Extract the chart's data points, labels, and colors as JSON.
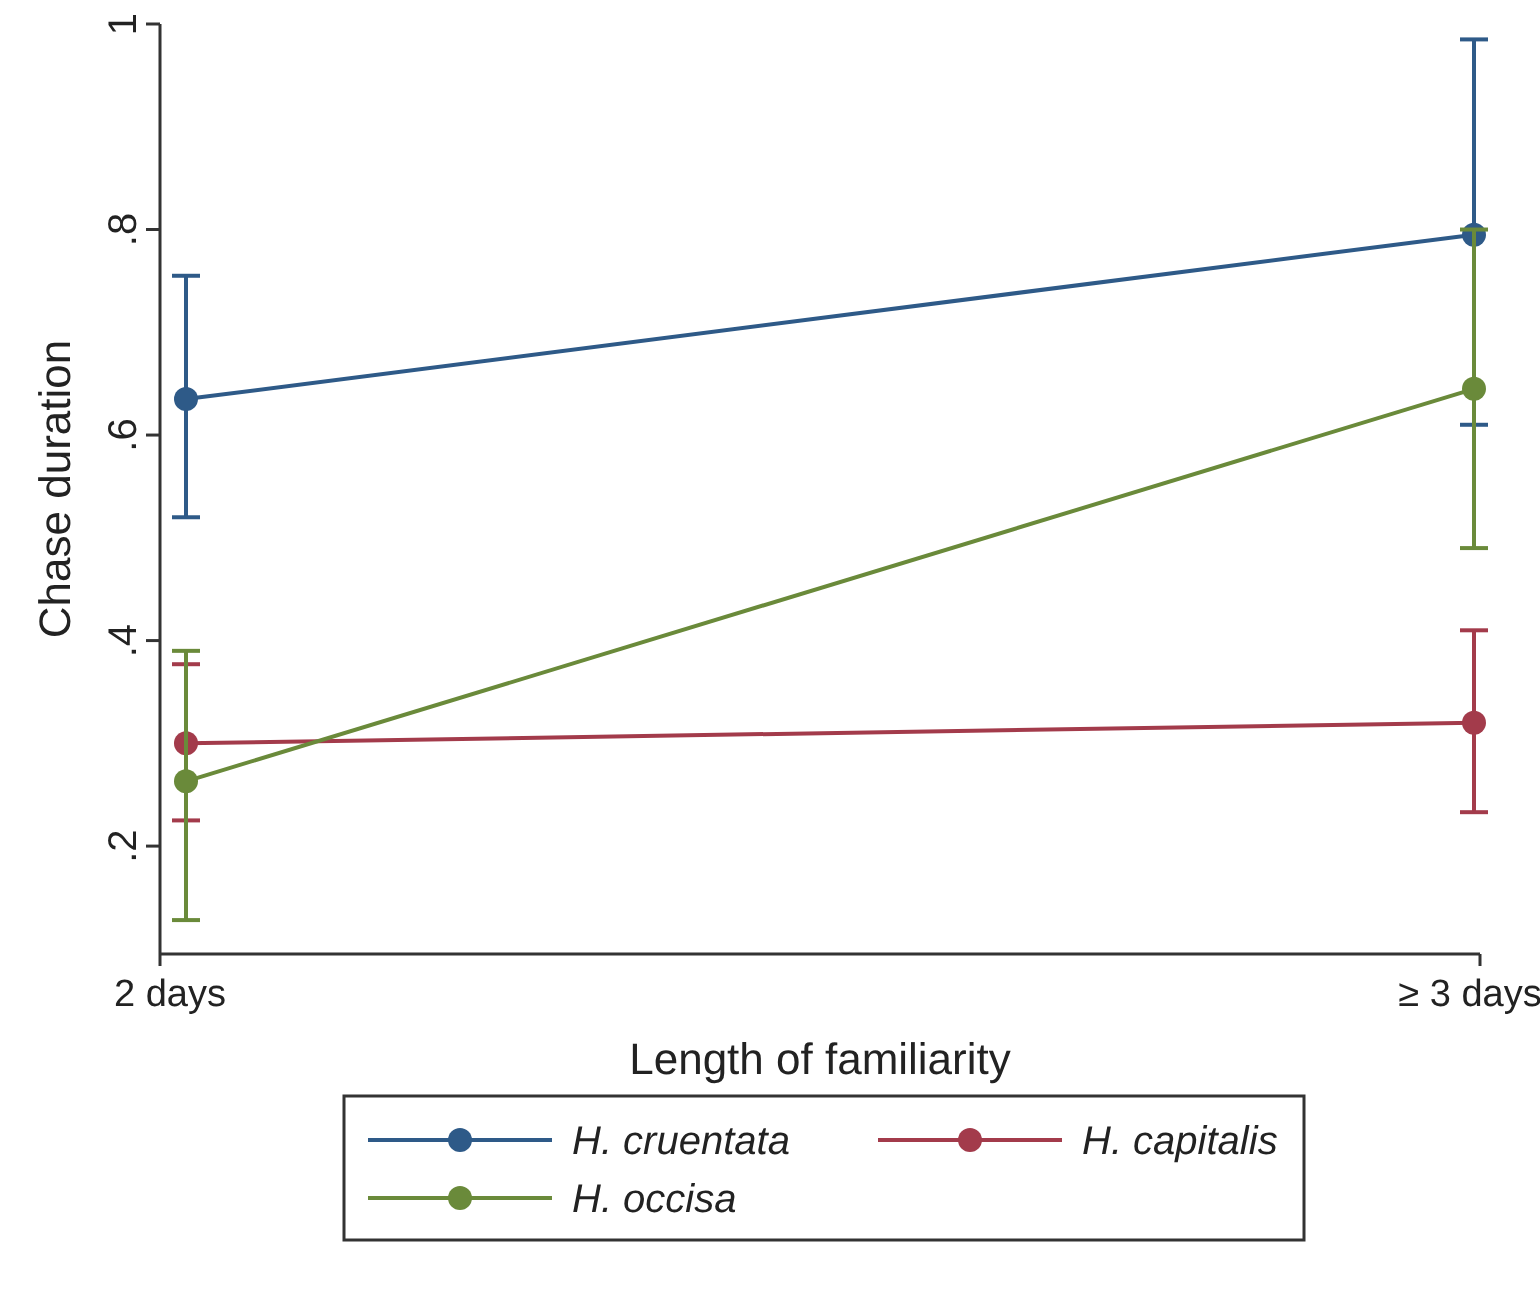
{
  "chart_data": {
    "type": "line",
    "xlabel": "Length of familiarity",
    "ylabel": "Chase duration",
    "categories": [
      "2 days",
      "≥ 3 days"
    ],
    "ylim": [
      0.095,
      1
    ],
    "yticks": [
      {
        "value": 0.2,
        "label": ".2"
      },
      {
        "value": 0.4,
        "label": ".4"
      },
      {
        "value": 0.6,
        "label": ".6"
      },
      {
        "value": 0.8,
        "label": ".8"
      },
      {
        "value": 1,
        "label": "1"
      }
    ],
    "marker": "circle",
    "legend": "bottom",
    "grid": false,
    "series": [
      {
        "name": "H. cruentata",
        "color": "#2e5a88",
        "values": [
          0.635,
          0.795
        ],
        "errors": [
          [
            0.52,
            0.755
          ],
          [
            0.61,
            0.985
          ]
        ]
      },
      {
        "name": "H. capitalis",
        "color": "#a33b4b",
        "values": [
          0.3,
          0.32
        ],
        "errors": [
          [
            0.225,
            0.377
          ],
          [
            0.233,
            0.41
          ]
        ]
      },
      {
        "name": "H. occisa",
        "color": "#6a8a3a",
        "values": [
          0.263,
          0.645
        ],
        "errors": [
          [
            0.128,
            0.39
          ],
          [
            0.49,
            0.8
          ]
        ]
      }
    ]
  }
}
